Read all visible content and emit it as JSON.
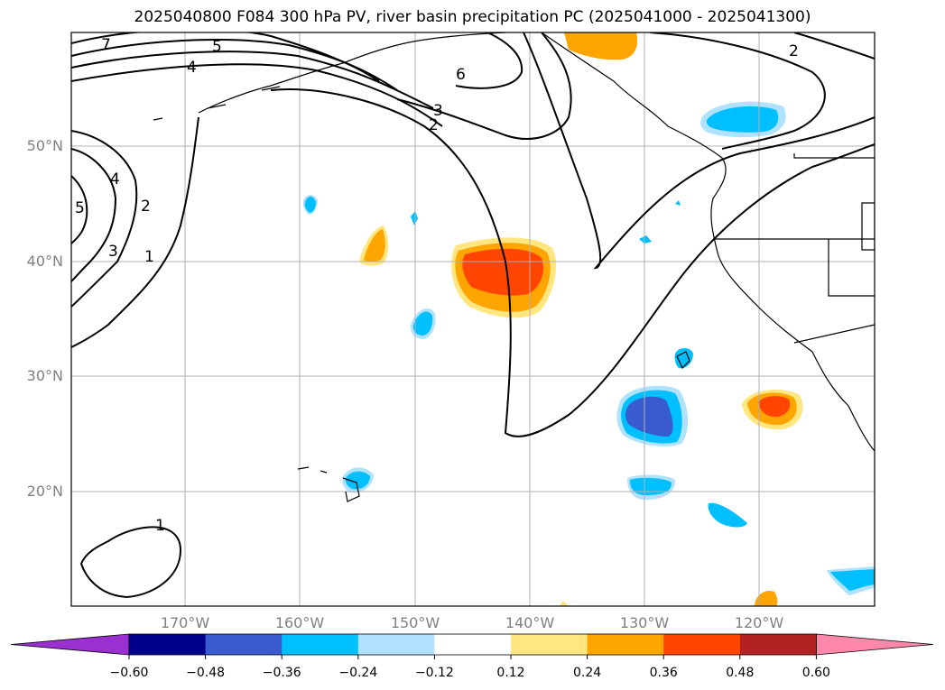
{
  "title": "2025040800 F084 300 hPa PV, river basin precipitation PC (2025041000 - 2025041300)",
  "lat_labels": [
    "50°N",
    "40°N",
    "30°N",
    "20°N"
  ],
  "lon_labels": [
    "170°W",
    "160°W",
    "150°W",
    "140°W",
    "130°W",
    "120°W"
  ],
  "contour_labels": [
    "7",
    "5",
    "4",
    "6",
    "3",
    "2",
    "2",
    "4",
    "5",
    "2",
    "3",
    "1",
    "1"
  ],
  "colorbar": {
    "ticks": [
      "−0.60",
      "−0.48",
      "−0.36",
      "−0.24",
      "−0.12",
      "0.12",
      "0.24",
      "0.36",
      "0.48",
      "0.60"
    ],
    "colors": [
      "#9b30d0",
      "#00008b",
      "#3a5bd0",
      "#00bfff",
      "#b0e2ff",
      "#ffffff",
      "#ffe680",
      "#ffa500",
      "#ff4500",
      "#b22222",
      "#ff88aa"
    ]
  }
}
